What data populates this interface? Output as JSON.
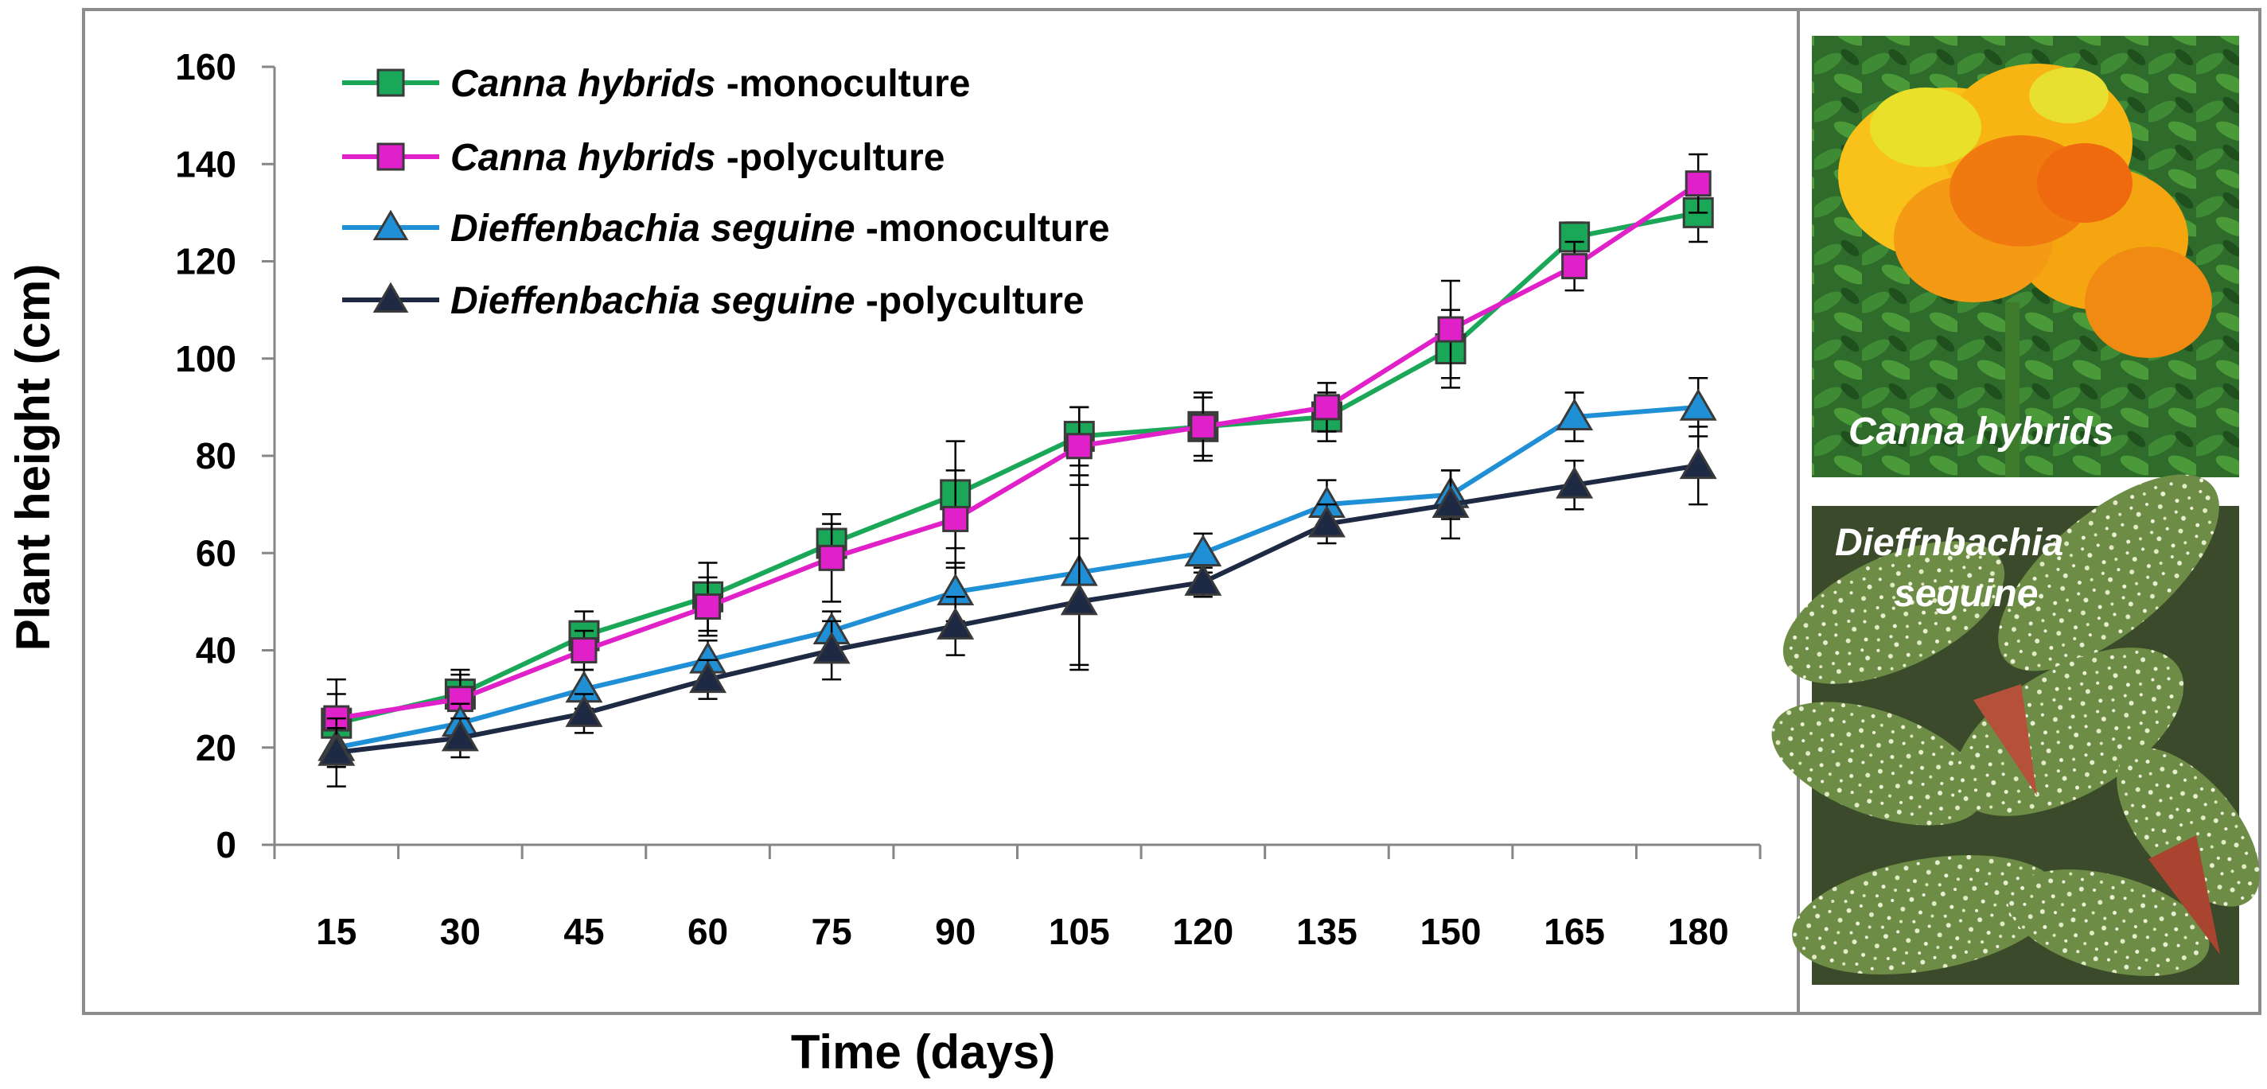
{
  "chart_data": {
    "type": "line",
    "title": "",
    "xlabel": "Time (days)",
    "ylabel": "Plant height (cm)",
    "ylim": [
      0,
      160
    ],
    "yticks": [
      0,
      20,
      40,
      60,
      80,
      100,
      120,
      140,
      160
    ],
    "categories": [
      "15",
      "30",
      "45",
      "60",
      "75",
      "90",
      "105",
      "120",
      "135",
      "150",
      "165",
      "180"
    ],
    "grid": false,
    "legend_position": "top-left",
    "series": [
      {
        "name_italic": "Canna hybrids",
        "name_rest": " -monoculture",
        "color": "#1aa858",
        "marker": "square",
        "values": [
          25,
          31,
          43,
          51,
          62,
          72,
          84,
          86,
          88,
          102,
          125,
          130
        ],
        "errors": [
          6,
          5,
          5,
          7,
          4,
          11,
          6,
          6,
          5,
          8,
          3,
          6
        ]
      },
      {
        "name_italic": "Canna hybrids",
        "name_rest": " -polyculture",
        "color": "#e020c8",
        "marker": "square",
        "values": [
          26,
          30,
          40,
          49,
          59,
          67,
          82,
          86,
          90,
          106,
          119,
          136
        ],
        "errors": [
          8,
          5,
          4,
          6,
          9,
          10,
          8,
          7,
          5,
          10,
          5,
          6
        ]
      },
      {
        "name_italic": "Dieffenbachia seguine",
        "name_rest": " -monoculture",
        "color": "#1f8fd6",
        "marker": "triangle",
        "values": [
          20,
          25,
          32,
          38,
          44,
          52,
          56,
          60,
          70,
          72,
          88,
          90
        ],
        "errors": [
          4,
          4,
          4,
          4,
          4,
          6,
          20,
          4,
          5,
          5,
          5,
          6
        ]
      },
      {
        "name_italic": "Dieffenbachia seguine",
        "name_rest": " -polyculture",
        "color": "#1e2a44",
        "marker": "triangle",
        "values": [
          19,
          22,
          27,
          34,
          40,
          45,
          50,
          54,
          66,
          70,
          74,
          78
        ],
        "errors": [
          7,
          4,
          4,
          4,
          6,
          6,
          13,
          3,
          4,
          7,
          5,
          8
        ]
      }
    ],
    "photos": [
      {
        "label": "Canna hybrids"
      },
      {
        "label_line1": "Dieffnbachia",
        "label_line2": "seguine"
      }
    ]
  }
}
